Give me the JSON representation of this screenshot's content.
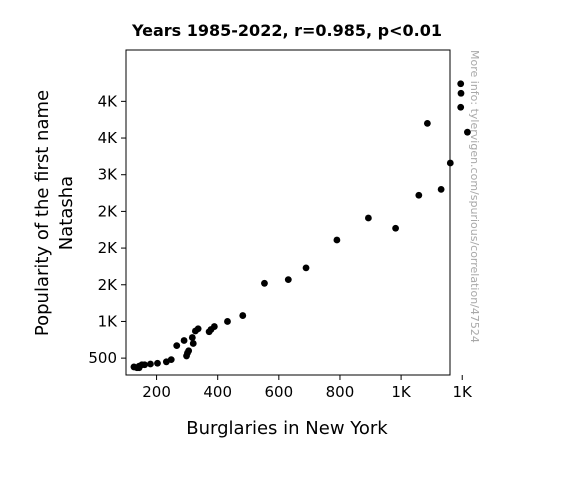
{
  "chart_data": {
    "type": "scatter",
    "title": "Years 1985-2022, r=0.985, p<0.01",
    "xlabel": "Burglaries in New York",
    "ylabel_lines": [
      "Popularity of the first name",
      "Natasha"
    ],
    "side_note": "More info: tylervigen.com/spurious/correlation/47524",
    "xlim": [
      100,
      1160
    ],
    "ylim": [
      270,
      4700
    ],
    "x_ticks": [
      {
        "value": 200,
        "label": "200"
      },
      {
        "value": 400,
        "label": "400"
      },
      {
        "value": 600,
        "label": "600"
      },
      {
        "value": 800,
        "label": "800"
      },
      {
        "value": 1000,
        "label": "1K"
      },
      {
        "value": 1200,
        "label": "1K"
      }
    ],
    "y_ticks": [
      {
        "value": 500,
        "label": "500"
      },
      {
        "value": 1000,
        "label": "1K"
      },
      {
        "value": 1500,
        "label": "2K"
      },
      {
        "value": 2000,
        "label": "2K"
      },
      {
        "value": 2500,
        "label": "2K"
      },
      {
        "value": 3000,
        "label": "3K"
      },
      {
        "value": 3500,
        "label": "4K"
      },
      {
        "value": 4000,
        "label": "4K"
      }
    ],
    "marker_color": "#000000",
    "grid": false,
    "points": [
      {
        "x": 1195,
        "y": 4240
      },
      {
        "x": 1196,
        "y": 4110
      },
      {
        "x": 1195,
        "y": 3920
      },
      {
        "x": 1217,
        "y": 3580
      },
      {
        "x": 1086,
        "y": 3700
      },
      {
        "x": 1161,
        "y": 3160
      },
      {
        "x": 1131,
        "y": 2800
      },
      {
        "x": 1058,
        "y": 2720
      },
      {
        "x": 982,
        "y": 2270
      },
      {
        "x": 893,
        "y": 2410
      },
      {
        "x": 790,
        "y": 2110
      },
      {
        "x": 689,
        "y": 1730
      },
      {
        "x": 631,
        "y": 1570
      },
      {
        "x": 553,
        "y": 1520
      },
      {
        "x": 482,
        "y": 1080
      },
      {
        "x": 432,
        "y": 1000
      },
      {
        "x": 389,
        "y": 930
      },
      {
        "x": 378,
        "y": 890
      },
      {
        "x": 372,
        "y": 860
      },
      {
        "x": 336,
        "y": 900
      },
      {
        "x": 327,
        "y": 870
      },
      {
        "x": 317,
        "y": 780
      },
      {
        "x": 320,
        "y": 700
      },
      {
        "x": 305,
        "y": 600
      },
      {
        "x": 301,
        "y": 570
      },
      {
        "x": 298,
        "y": 530
      },
      {
        "x": 290,
        "y": 740
      },
      {
        "x": 266,
        "y": 670
      },
      {
        "x": 248,
        "y": 480
      },
      {
        "x": 232,
        "y": 450
      },
      {
        "x": 203,
        "y": 430
      },
      {
        "x": 180,
        "y": 420
      },
      {
        "x": 161,
        "y": 410
      },
      {
        "x": 143,
        "y": 390
      },
      {
        "x": 152,
        "y": 410
      },
      {
        "x": 143,
        "y": 370
      },
      {
        "x": 136,
        "y": 370
      },
      {
        "x": 126,
        "y": 380
      }
    ]
  }
}
